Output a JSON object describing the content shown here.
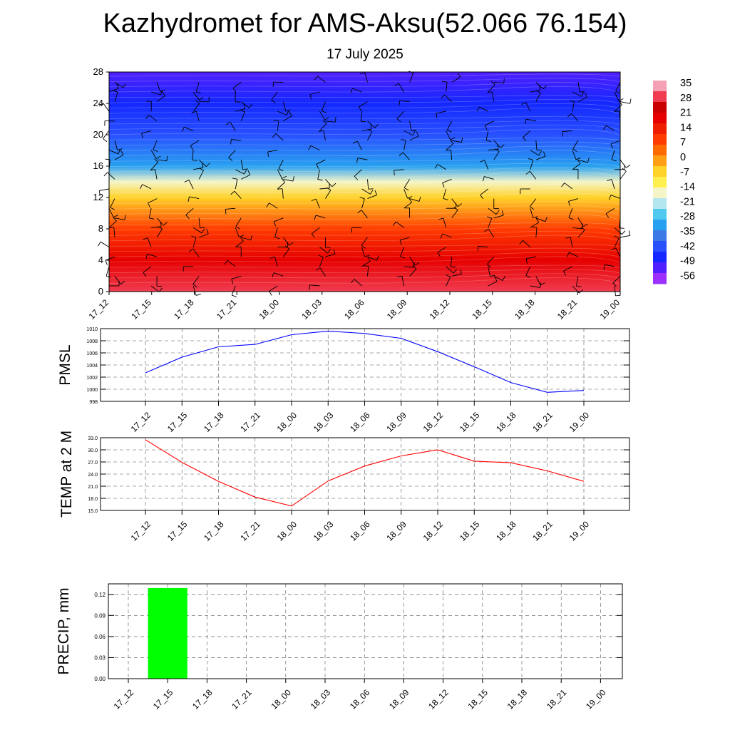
{
  "header": {
    "title": "Kazhydromet for AMS-Aksu(52.066 76.154)",
    "date": "17 July 2025"
  },
  "colors": {
    "pmsl_line": "#0000ff",
    "temp_line": "#ff0000",
    "precip_bar": "#00ff00",
    "colorbar": [
      "#9b30ff",
      "#5020ff",
      "#1428ff",
      "#2850ff",
      "#3c78e6",
      "#28a0f0",
      "#50c8f0",
      "#b4e6f0",
      "#f5f5c8",
      "#fff050",
      "#ffd228",
      "#ffa014",
      "#ff6a00",
      "#ff3c00",
      "#f01e00",
      "#e60000",
      "#c80000",
      "#f03c50",
      "#f5a0b4"
    ]
  },
  "chart_data": [
    {
      "type": "heatmap",
      "title": "",
      "x_ticks": [
        "17_12",
        "17_15",
        "17_18",
        "17_21",
        "18_00",
        "18_03",
        "18_06",
        "18_09",
        "18_12",
        "18_15",
        "18_18",
        "18_21",
        "19_00"
      ],
      "y_ticks": [
        "0",
        "4",
        "8",
        "12",
        "16",
        "20",
        "24",
        "28"
      ],
      "ylim": [
        0,
        28
      ],
      "colorbar_labels": [
        "35",
        "28",
        "21",
        "14",
        "7",
        "0",
        "-7",
        "-14",
        "-21",
        "-28",
        "-35",
        "-42",
        "-49",
        "-56"
      ],
      "value_range": [
        -63,
        35
      ],
      "description_levels": [
        {
          "height": 0,
          "temperature": 28
        },
        {
          "height": 4,
          "temperature": 18
        },
        {
          "height": 8,
          "temperature": 8
        },
        {
          "height": 12,
          "temperature": -10
        },
        {
          "height": 14,
          "temperature": -20
        },
        {
          "height": 16,
          "temperature": -35
        },
        {
          "height": 20,
          "temperature": -45
        },
        {
          "height": 24,
          "temperature": -52
        },
        {
          "height": 28,
          "temperature": -57
        }
      ]
    },
    {
      "type": "line",
      "ylabel": "PMSL",
      "x": [
        "17_12",
        "17_15",
        "17_18",
        "17_21",
        "18_00",
        "18_03",
        "18_06",
        "18_09",
        "18_12",
        "18_15",
        "18_18",
        "18_21",
        "19_00"
      ],
      "ylim": [
        998,
        1010
      ],
      "y_ticks": [
        "1010",
        "1008",
        "1006",
        "1004",
        "1002",
        "1000",
        "998"
      ],
      "series": [
        {
          "values": [
            1002.7,
            1005.3,
            1007.0,
            1007.4,
            1009.0,
            1009.6,
            1009.2,
            1008.4,
            1006.2,
            1003.7,
            1001.1,
            999.5,
            999.8
          ]
        }
      ]
    },
    {
      "type": "line",
      "ylabel": "TEMP at 2 M",
      "x": [
        "17_12",
        "17_15",
        "17_18",
        "17_21",
        "18_00",
        "18_03",
        "18_06",
        "18_09",
        "18_12",
        "18_15",
        "18_18",
        "18_21",
        "19_00"
      ],
      "ylim": [
        15,
        33
      ],
      "y_ticks": [
        "33.0",
        "30.0",
        "27.0",
        "24.0",
        "21.0",
        "18.0",
        "15.0"
      ],
      "series": [
        {
          "values": [
            32.5,
            26.9,
            22.2,
            18.3,
            16.1,
            22.3,
            26.0,
            28.5,
            30.0,
            27.2,
            26.8,
            24.8,
            22.2
          ]
        }
      ]
    },
    {
      "type": "bar",
      "ylabel": "PRECIP, mm",
      "x": [
        "17_12",
        "17_15",
        "17_18",
        "17_21",
        "18_00",
        "18_03",
        "18_06",
        "18_09",
        "18_12",
        "18_15",
        "18_18",
        "18_21",
        "19_00"
      ],
      "ylim": [
        0,
        0.135
      ],
      "y_ticks": [
        "0.12",
        "0.09",
        "0.06",
        "0.03",
        "0.00"
      ],
      "values": [
        0,
        0.129,
        0,
        0,
        0,
        0,
        0,
        0,
        0,
        0,
        0,
        0,
        0
      ]
    }
  ]
}
